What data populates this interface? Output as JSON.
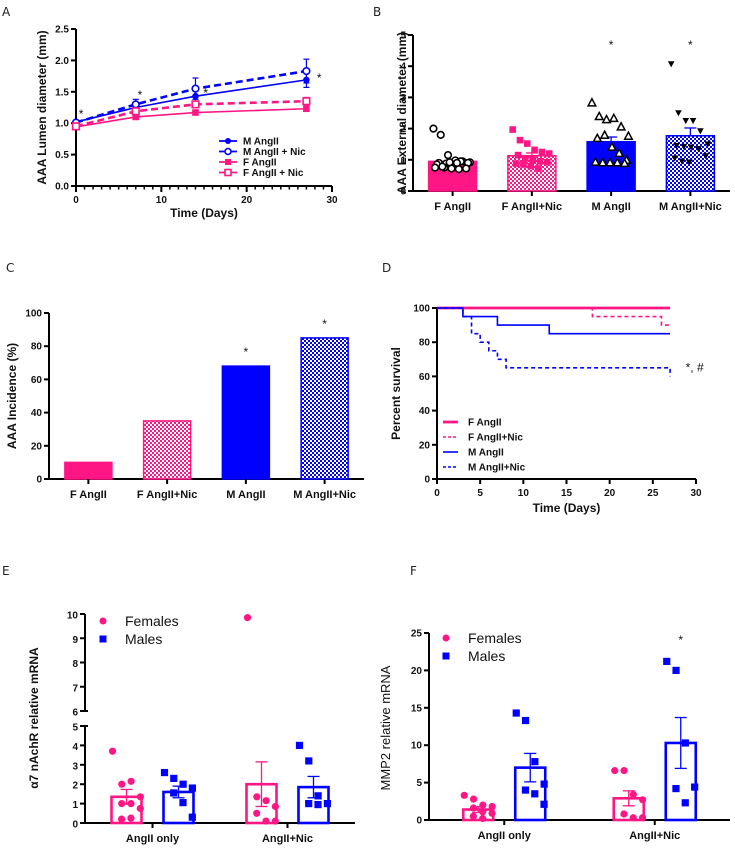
{
  "colors": {
    "female": "#FF1685",
    "male": "#0000FF",
    "axis": "#000000"
  },
  "chart_data": [
    {
      "panel": "A",
      "type": "line",
      "xlabel": "Time (Days)",
      "ylabel": "AAA Lumen diameter (mm)",
      "xlim": [
        0,
        30
      ],
      "ylim": [
        0,
        2.5
      ],
      "xticks": [
        "0",
        "10",
        "20",
        "30"
      ],
      "yticks": [
        "0.0",
        "0.5",
        "1.0",
        "1.5",
        "2.0",
        "2.5"
      ],
      "x": [
        0,
        7,
        14,
        27
      ],
      "series": [
        {
          "name": "M AngII",
          "color": "male",
          "dashed": false,
          "marker": "filled-circle",
          "values": [
            1.02,
            1.25,
            1.43,
            1.69
          ],
          "err": [
            0.02,
            0.05,
            0.08,
            0.12
          ]
        },
        {
          "name": "M AngII + Nic",
          "color": "male",
          "dashed": true,
          "marker": "open-circle",
          "values": [
            1.01,
            1.3,
            1.55,
            1.83
          ],
          "err": [
            0.02,
            0.08,
            0.17,
            0.19
          ]
        },
        {
          "name": "F AngII",
          "color": "female",
          "dashed": false,
          "marker": "filled-square",
          "values": [
            0.94,
            1.1,
            1.17,
            1.23
          ],
          "err": [
            0.02,
            0.03,
            0.03,
            0.04
          ]
        },
        {
          "name": "F AngII + Nic",
          "color": "female",
          "dashed": true,
          "marker": "open-square",
          "values": [
            0.95,
            1.19,
            1.3,
            1.35
          ],
          "err": [
            0.02,
            0.04,
            0.05,
            0.06
          ]
        }
      ],
      "annotations": [
        {
          "text": "*",
          "x": 0.6,
          "y": 1.15
        },
        {
          "text": "*",
          "x": 7.5,
          "y": 1.45
        },
        {
          "text": "*",
          "x": 15.2,
          "y": 1.48
        },
        {
          "text": "*",
          "x": 28.5,
          "y": 1.72
        }
      ],
      "legend": "bottom-right"
    },
    {
      "panel": "B",
      "type": "bar",
      "ylabel": "AAA External diameter (mm)",
      "ylim": [
        0,
        5
      ],
      "yticks": [
        "0",
        "1",
        "2",
        "3",
        "4",
        "5"
      ],
      "categories": [
        "F AngII",
        "F AngII+Nic",
        "M AngII",
        "M AngII+Nic"
      ],
      "values": [
        0.95,
        1.13,
        1.58,
        1.77
      ],
      "err": [
        0.06,
        0.09,
        0.15,
        0.25
      ],
      "fill": [
        "female-solid",
        "female-check",
        "male-solid",
        "male-check"
      ],
      "points": [
        [
          2.0,
          1.8,
          1.15,
          0.98,
          0.95,
          0.92,
          0.9,
          0.88,
          0.85,
          0.95,
          0.9,
          0.85,
          0.75,
          0.72,
          0.7,
          0.72,
          0.75,
          0.78,
          0.92,
          0.9
        ],
        [
          1.97,
          1.63,
          1.52,
          1.32,
          1.25,
          1.2,
          1.15,
          1.05,
          1.0,
          0.95,
          0.92,
          0.88,
          0.85,
          0.8,
          0.72
        ],
        [
          2.82,
          2.38,
          2.28,
          2.32,
          2.05,
          1.75,
          1.68,
          1.78,
          1.4,
          1.2,
          0.98,
          0.92,
          0.9,
          0.9,
          0.9,
          0.88
        ],
        [
          4.07,
          2.5,
          2.25,
          2.25,
          1.92,
          1.5,
          1.45,
          1.42,
          1.4,
          1.35,
          1.12,
          1.05,
          0.95,
          0.92
        ]
      ],
      "point_markers": [
        "open-circle",
        "filled-square",
        "open-triangle",
        "filled-down-triangle"
      ],
      "annotations": [
        {
          "text": "*",
          "category": "M AngII"
        },
        {
          "text": "*",
          "category": "M AngII+Nic"
        }
      ]
    },
    {
      "panel": "C",
      "type": "bar",
      "ylabel": "AAA Incidence (%)",
      "ylim": [
        0,
        100
      ],
      "yticks": [
        "0",
        "20",
        "40",
        "60",
        "80",
        "100"
      ],
      "categories": [
        "F AngII",
        "F AngII+Nic",
        "M AngII",
        "M AngII+Nic"
      ],
      "values": [
        10,
        35,
        68,
        85
      ],
      "fill": [
        "female-solid",
        "female-check",
        "male-solid",
        "male-check"
      ],
      "annotations": [
        {
          "text": "*",
          "category": "M AngII"
        },
        {
          "text": "*",
          "category": "M AngII+Nic"
        }
      ]
    },
    {
      "panel": "D",
      "type": "line",
      "xlabel": "Time (Days)",
      "ylabel": "Percent survival",
      "xlim": [
        0,
        30
      ],
      "ylim": [
        0,
        100
      ],
      "xticks": [
        "0",
        "5",
        "10",
        "15",
        "20",
        "25",
        "30"
      ],
      "yticks": [
        "0",
        "20",
        "40",
        "60",
        "80",
        "100"
      ],
      "series": [
        {
          "name": "F AngII",
          "color": "female",
          "dashed": false,
          "thick": true,
          "steps": [
            [
              0,
              100
            ],
            [
              27,
              100
            ]
          ]
        },
        {
          "name": "F AngII+Nic",
          "color": "female",
          "dashed": true,
          "steps": [
            [
              0,
              100
            ],
            [
              18,
              95
            ],
            [
              26,
              90
            ],
            [
              27,
              90
            ]
          ]
        },
        {
          "name": "M AngII",
          "color": "male",
          "dashed": false,
          "steps": [
            [
              0,
              100
            ],
            [
              3,
              95
            ],
            [
              7,
              90
            ],
            [
              13,
              85
            ],
            [
              27,
              85
            ]
          ]
        },
        {
          "name": "M AngII+Nic",
          "color": "male",
          "dashed": true,
          "steps": [
            [
              0,
              100
            ],
            [
              3,
              95
            ],
            [
              4,
              85
            ],
            [
              5,
              80
            ],
            [
              6,
              75
            ],
            [
              7,
              70
            ],
            [
              8,
              65
            ],
            [
              27,
              65
            ],
            [
              27,
              60
            ]
          ]
        }
      ],
      "annotations": [
        {
          "text": "*, #",
          "x": 28.8,
          "y": 63
        }
      ],
      "legend": "bottom-left"
    },
    {
      "panel": "E",
      "type": "bar",
      "ylabel": "α7 nAchR relative mRNA",
      "ylim_lower": [
        0,
        5
      ],
      "ylim_upper": [
        6,
        10
      ],
      "yticks": [
        "0",
        "1",
        "2",
        "3",
        "4",
        "5",
        "6",
        "7",
        "8",
        "9",
        "10"
      ],
      "categories": [
        "AngII only",
        "AngII+Nic"
      ],
      "series": [
        {
          "name": "Females",
          "color": "female",
          "marker": "circle",
          "values": [
            1.35,
            2.0
          ],
          "err": [
            0.38,
            1.15
          ],
          "points": [
            [
              3.7,
              2.0,
              2.15,
              1.35,
              1.0,
              1.0,
              0.75,
              0.2,
              0.25
            ],
            [
              9.85,
              1.35,
              1.15,
              0.85,
              0.5,
              0.1,
              0.1
            ]
          ]
        },
        {
          "name": "Males",
          "color": "male",
          "marker": "square",
          "values": [
            1.6,
            1.85
          ],
          "err": [
            0.3,
            0.55
          ],
          "points": [
            [
              2.6,
              2.3,
              2.0,
              1.8,
              1.55,
              1.05,
              0.3
            ],
            [
              4.0,
              3.2,
              1.4,
              1.0,
              1.0,
              0.95
            ]
          ]
        }
      ],
      "legend": "top-left"
    },
    {
      "panel": "F",
      "type": "bar",
      "ylabel": "MMP2 relative mRNA",
      "ylim": [
        0,
        25
      ],
      "yticks": [
        "0",
        "5",
        "10",
        "15",
        "20",
        "25"
      ],
      "categories": [
        "AngII only",
        "AngII+Nic"
      ],
      "series": [
        {
          "name": "Females",
          "color": "female",
          "marker": "circle",
          "values": [
            1.4,
            2.9
          ],
          "err": [
            0.4,
            1.0
          ],
          "points": [
            [
              3.3,
              2.8,
              2.0,
              1.8,
              1.6,
              1.1,
              0.9,
              0.5,
              0.2
            ],
            [
              6.6,
              6.6,
              3.4,
              2.7,
              0.8,
              0.3,
              0.3
            ]
          ]
        },
        {
          "name": "Males",
          "color": "male",
          "marker": "square",
          "values": [
            7.0,
            10.3
          ],
          "err": [
            1.9,
            3.4
          ],
          "points": [
            [
              14.3,
              13.3,
              7.8,
              4.8,
              4.0,
              3.5,
              2.1
            ],
            [
              21.2,
              20.0,
              10.3,
              4.4,
              4.2,
              2.3
            ]
          ]
        }
      ],
      "annotations": [
        {
          "text": "*",
          "category": "AngII+Nic"
        }
      ],
      "legend": "top-left"
    }
  ]
}
